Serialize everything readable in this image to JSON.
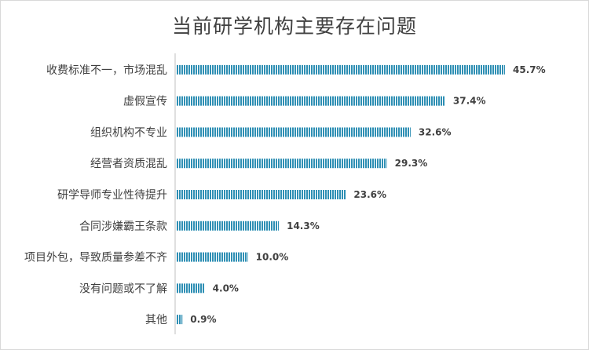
{
  "chart_data": {
    "type": "bar",
    "orientation": "horizontal",
    "title": "当前研学机构主要存在问题",
    "categories": [
      "收费标准不一，市场混乱",
      "虚假宣传",
      "组织机构不专业",
      "经营者资质混乱",
      "研学导师专业性待提升",
      "合同涉嫌霸王条款",
      "项目外包，导致质量参差不齐",
      "没有问题或不了解",
      "其他"
    ],
    "values": [
      45.7,
      37.4,
      32.6,
      29.3,
      23.6,
      14.3,
      10.0,
      4.0,
      0.9
    ],
    "value_labels": [
      "45.7%",
      "37.4%",
      "32.6%",
      "29.3%",
      "23.6%",
      "14.3%",
      "10.0%",
      "4.0%",
      "0.9%"
    ],
    "xlim": [
      0,
      50
    ],
    "unit": "%",
    "grid": false,
    "legend": "none",
    "bar_color": "#2e8fb4",
    "bar_stripe_color": "#ffffff"
  }
}
